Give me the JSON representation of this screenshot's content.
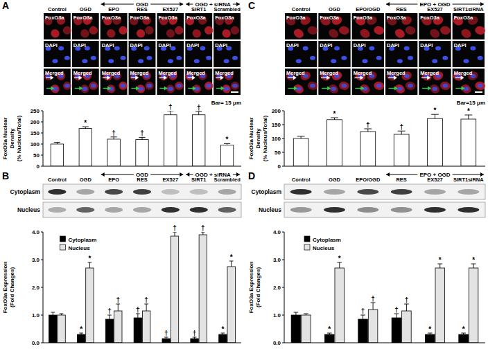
{
  "chart_data": [
    {
      "type": "bar",
      "title": "A",
      "categories": [
        "Control",
        "OGD",
        "EPO",
        "RES",
        "EX527",
        "SIRT1",
        "Scrambled"
      ],
      "values": [
        100,
        170,
        122,
        120,
        232,
        232,
        95
      ],
      "errors": [
        8,
        8,
        10,
        10,
        18,
        15,
        7
      ],
      "significance": [
        null,
        "*",
        "†",
        "†",
        "†",
        "†",
        "*"
      ],
      "color": "#ffffff",
      "ylim": [
        0,
        250
      ],
      "yticks": [
        0,
        50,
        100,
        150,
        200,
        250
      ],
      "y_label": [
        "FoxO3a Nuclear",
        "Density",
        "(% Nucleus/Total)"
      ],
      "tick_labels": "y",
      "annotations": {
        "stains": [
          "FoxO3a",
          "DAPI",
          "Merged"
        ],
        "groups": [
          {
            "label": "OGD",
            "first": 2,
            "last": 4
          },
          {
            "label": "OGD + siRNA",
            "first": 5,
            "last": 6
          }
        ],
        "scale_bar": "Bar= 15 μm"
      }
    },
    {
      "type": "bar",
      "title": "B",
      "categories": [
        "Control",
        "OGD",
        "EPO",
        "RES",
        "EX527",
        "SIRT1",
        "Scrambled"
      ],
      "series": [
        {
          "name": "Cytoplasm",
          "color": "#000000",
          "values": [
            1.0,
            0.3,
            0.85,
            0.9,
            0.15,
            0.15,
            0.3
          ],
          "errors": [
            0.1,
            0.05,
            0.15,
            0.15,
            0.05,
            0.05,
            0.05
          ],
          "significance": [
            null,
            "*",
            "†",
            "†",
            "†",
            "†",
            "*"
          ]
        },
        {
          "name": "Nucleus",
          "color": "#e3e3e3",
          "values": [
            1.0,
            2.7,
            1.15,
            1.15,
            3.85,
            3.9,
            2.75
          ],
          "errors": [
            0.05,
            0.2,
            0.25,
            0.25,
            0.15,
            0.1,
            0.2
          ],
          "significance": [
            null,
            "*",
            "†",
            "†",
            "†",
            "†",
            "*"
          ]
        }
      ],
      "ylim": [
        0,
        4
      ],
      "yticks": [
        {
          "value": 0,
          "label": "0.0"
        },
        {
          "value": 1,
          "label": "1.0"
        },
        {
          "value": 2,
          "label": "2.0"
        },
        {
          "value": 3,
          "label": "3.0"
        },
        {
          "value": 4,
          "label": "4.0"
        }
      ],
      "y_label": [
        "FoxO3a Expression",
        "(Fold Changes)"
      ],
      "legend": "top-left",
      "tick_labels": "y",
      "annotations": {
        "groups": [
          {
            "label": "OGD",
            "first": 2,
            "last": 4
          },
          {
            "label": "OGD + siRNA",
            "first": 5,
            "last": 6
          }
        ],
        "blot_rows": [
          "Cytoplasm",
          "Nucleus"
        ]
      }
    },
    {
      "type": "bar",
      "title": "C",
      "categories": [
        "Control",
        "OGD",
        "EPO/OGD",
        "RES",
        "EX527",
        "SIRT1siRNA"
      ],
      "values": [
        100,
        168,
        125,
        115,
        172,
        170
      ],
      "errors": [
        8,
        7,
        10,
        12,
        15,
        15
      ],
      "significance": [
        null,
        "*",
        "†",
        "†",
        "*",
        "*"
      ],
      "color": "#ffffff",
      "ylim": [
        0,
        200
      ],
      "yticks": [
        0,
        50,
        100,
        150,
        200
      ],
      "y_label": [
        "FoxO3a Nuclear",
        "Density",
        "(% Nucleus/Total)"
      ],
      "tick_labels": "y",
      "annotations": {
        "stains": [
          "FoxO3a",
          "DAPI",
          "Merged"
        ],
        "groups": [
          {
            "label": "EPO + OGD",
            "first": 3,
            "last": 5
          }
        ],
        "scale_bar": "Bar=15 μm"
      }
    },
    {
      "type": "bar",
      "title": "D",
      "categories": [
        "Control",
        "OGD",
        "EPO/OGD",
        "RES",
        "EX527",
        "SIRT1siRNA"
      ],
      "series": [
        {
          "name": "Cytoplasm",
          "color": "#000000",
          "values": [
            1.0,
            0.3,
            0.85,
            0.9,
            0.3,
            0.3
          ],
          "errors": [
            0.1,
            0.05,
            0.15,
            0.15,
            0.05,
            0.05
          ],
          "significance": [
            null,
            "*",
            "†",
            "†",
            "*",
            "*"
          ]
        },
        {
          "name": "Nucleus",
          "color": "#e3e3e3",
          "values": [
            1.0,
            2.7,
            1.2,
            1.15,
            2.7,
            2.7
          ],
          "errors": [
            0.05,
            0.2,
            0.25,
            0.25,
            0.15,
            0.15
          ],
          "significance": [
            null,
            "*",
            "†",
            "†",
            "*",
            "*"
          ]
        }
      ],
      "ylim": [
        0,
        4
      ],
      "yticks": [
        {
          "value": 0,
          "label": "0.0"
        },
        {
          "value": 1,
          "label": "1.0"
        },
        {
          "value": 2,
          "label": "2.0"
        },
        {
          "value": 3,
          "label": "3.0"
        },
        {
          "value": 4,
          "label": "4.0"
        }
      ],
      "y_label": [
        "FoxO3a Expression",
        "(Fold Changes)"
      ],
      "legend": "top-left",
      "tick_labels": "y",
      "annotations": {
        "groups": [
          {
            "label": "EPO + OGD",
            "first": 3,
            "last": 5
          }
        ],
        "blot_rows": [
          "Cytoplasm",
          "Nucleus"
        ]
      }
    }
  ]
}
